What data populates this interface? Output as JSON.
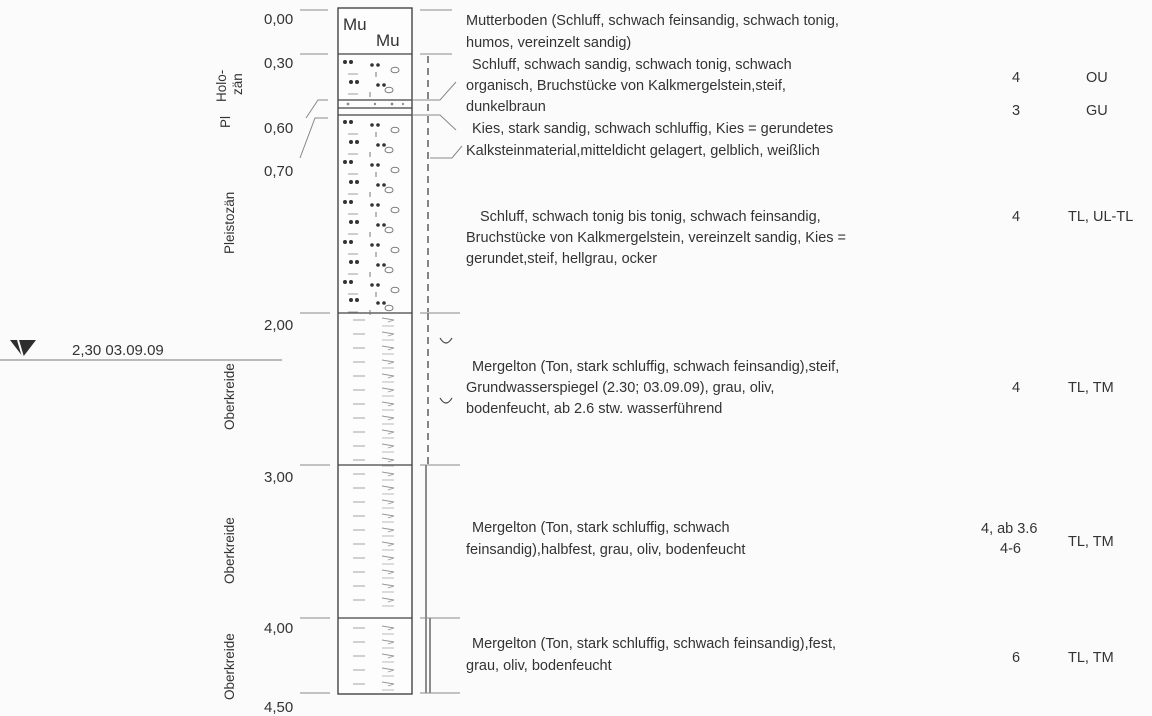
{
  "groundwater": {
    "label": "2,30 03.09.09"
  },
  "depths": [
    "0,00",
    "0,30",
    "0,60",
    "0,70",
    "2,00",
    "3,00",
    "4,00",
    "4,50"
  ],
  "stratigraphy": {
    "holozaen_line1": "Holo-",
    "holozaen_line2": "zän",
    "pl": "Pl",
    "pleistozaen": "Pleistozän",
    "oberkreide1": "Oberkreide",
    "oberkreide2": "Oberkreide",
    "oberkreide3": "Oberkreide"
  },
  "column_labels": {
    "mu1": "Mu",
    "mu2": "Mu"
  },
  "layers": [
    {
      "lines": [
        "Mutterboden (Schluff, schwach feinsandig, schwach tonig,",
        "humos, vereinzelt sandig)"
      ],
      "consistency": "",
      "group": ""
    },
    {
      "lines": [
        "Schluff, schwach sandig, schwach tonig, schwach",
        "organisch, Bruchstücke von Kalkmergelstein,steif,",
        "dunkelbraun"
      ],
      "consistency": "4",
      "group": "OU"
    },
    {
      "lines": [
        "Kies, stark sandig, schwach schluffig,  Kies = gerundetes",
        "Kalksteinmaterial,mitteldicht gelagert, gelblich, weißlich"
      ],
      "consistency": "3",
      "group": "GU"
    },
    {
      "lines": [
        "Schluff, schwach tonig bis tonig, schwach feinsandig,",
        "Bruchstücke von Kalkmergelstein, vereinzelt sandig,  Kies =",
        "gerundet,steif, hellgrau, ocker"
      ],
      "consistency": "4",
      "group": "TL, UL-TL"
    },
    {
      "lines": [
        "Mergelton (Ton, stark schluffig, schwach feinsandig),steif,",
        "Grundwasserspiegel (2.30; 03.09.09), grau, oliv,",
        "bodenfeucht, ab 2.6 stw. wasserführend"
      ],
      "consistency": "4",
      "group": "TL, TM"
    },
    {
      "lines": [
        "Mergelton (Ton, stark schluffig, schwach",
        "feinsandig),halbfest, grau, oliv, bodenfeucht"
      ],
      "consistency_lines": [
        "4, ab 3.6",
        "4-6"
      ],
      "group": "TL, TM"
    },
    {
      "lines": [
        "Mergelton (Ton, stark schluffig, schwach feinsandig),fest,",
        "grau, oliv, bodenfeucht"
      ],
      "consistency": "6",
      "group": "TL, TM"
    }
  ]
}
